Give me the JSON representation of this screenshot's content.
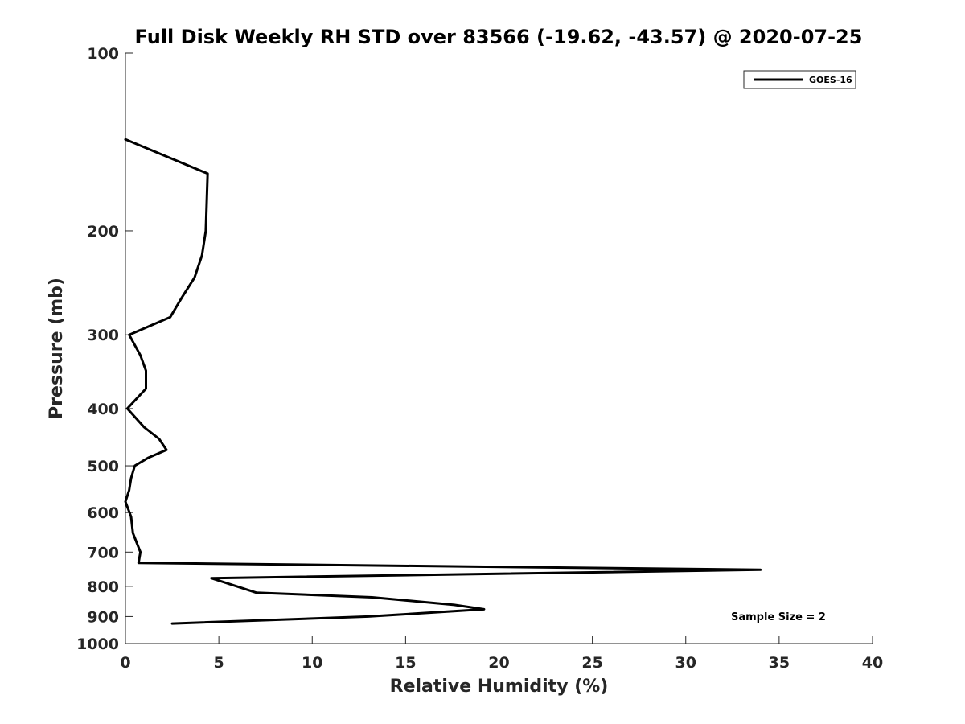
{
  "chart_data": {
    "type": "line",
    "title": "Full Disk Weekly RH STD over 83566 (-19.62, -43.57) @ 2020-07-25",
    "xlabel": "Relative Humidity (%)",
    "ylabel": "Pressure (mb)",
    "xlim": [
      0,
      40
    ],
    "ylim": [
      100,
      1000
    ],
    "y_scale": "log",
    "y_reversed": true,
    "grid": false,
    "legend_position": "top-right",
    "x_ticks": [
      "0",
      "5",
      "10",
      "15",
      "20",
      "25",
      "30",
      "35",
      "40"
    ],
    "y_ticks": [
      "100",
      "200",
      "300",
      "400",
      "500",
      "600",
      "700",
      "800",
      "900",
      "1000"
    ],
    "annotation": "Sample Size = 2",
    "series": [
      {
        "name": "GOES-16",
        "color": "#000000",
        "points": [
          {
            "x": 0.0,
            "p": 140
          },
          {
            "x": 4.4,
            "p": 160
          },
          {
            "x": 4.3,
            "p": 200
          },
          {
            "x": 4.1,
            "p": 220
          },
          {
            "x": 3.7,
            "p": 240
          },
          {
            "x": 3.0,
            "p": 260
          },
          {
            "x": 2.4,
            "p": 280
          },
          {
            "x": 0.2,
            "p": 300
          },
          {
            "x": 0.8,
            "p": 325
          },
          {
            "x": 1.1,
            "p": 345
          },
          {
            "x": 1.1,
            "p": 370
          },
          {
            "x": 0.1,
            "p": 400
          },
          {
            "x": 1.0,
            "p": 430
          },
          {
            "x": 1.8,
            "p": 450
          },
          {
            "x": 2.2,
            "p": 470
          },
          {
            "x": 1.2,
            "p": 485
          },
          {
            "x": 0.5,
            "p": 500
          },
          {
            "x": 0.3,
            "p": 525
          },
          {
            "x": 0.2,
            "p": 550
          },
          {
            "x": 0.0,
            "p": 575
          },
          {
            "x": 0.3,
            "p": 610
          },
          {
            "x": 0.4,
            "p": 650
          },
          {
            "x": 0.8,
            "p": 700
          },
          {
            "x": 0.7,
            "p": 730
          },
          {
            "x": 34.0,
            "p": 750
          },
          {
            "x": 4.6,
            "p": 775
          },
          {
            "x": 7.0,
            "p": 820
          },
          {
            "x": 13.2,
            "p": 835
          },
          {
            "x": 17.6,
            "p": 860
          },
          {
            "x": 19.2,
            "p": 875
          },
          {
            "x": 13.0,
            "p": 900
          },
          {
            "x": 2.5,
            "p": 925
          }
        ]
      }
    ]
  }
}
